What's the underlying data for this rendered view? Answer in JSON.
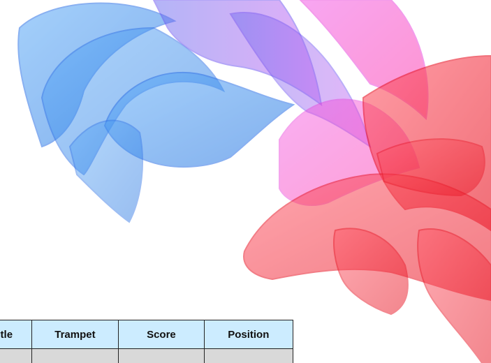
{
  "table": {
    "headers": [
      "Title",
      "Trampet",
      "Score",
      "Position"
    ],
    "rows": [
      [
        "",
        "",
        "",
        ""
      ]
    ]
  },
  "artwork": {
    "icon": "abstract-swirl-ribbons",
    "colors": {
      "blue": "#3a8ef0",
      "violet": "#8a4ff0",
      "magenta": "#ff2fd0",
      "red": "#ff2a3a"
    }
  }
}
